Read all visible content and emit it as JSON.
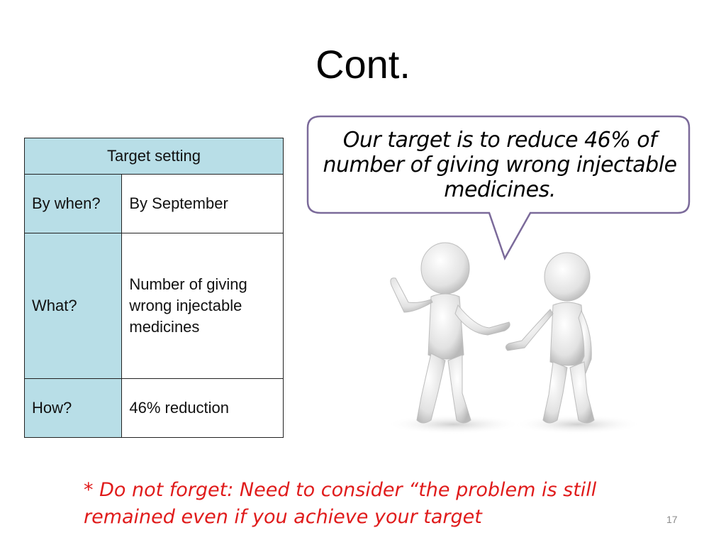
{
  "slide": {
    "title": "Cont.",
    "page_number": "17"
  },
  "table": {
    "header": "Target setting",
    "rows": [
      {
        "label": "By when?",
        "value": "By September"
      },
      {
        "label": "What?",
        "value": "Number of giving wrong injectable medicines"
      },
      {
        "label": "How?",
        "value": "46% reduction"
      }
    ]
  },
  "speech_bubble": {
    "text": "Our target is to reduce 46% of number of giving wrong injectable medicines."
  },
  "illustration": {
    "icon": "two-stick-figures-talking"
  },
  "note": {
    "text": "* Do not forget: Need to consider “the problem is still remained even if you achieve your target"
  },
  "colors": {
    "table_header_bg": "#b8dee7",
    "bubble_border": "#7b6a9a",
    "note_text": "#e01b1b"
  }
}
